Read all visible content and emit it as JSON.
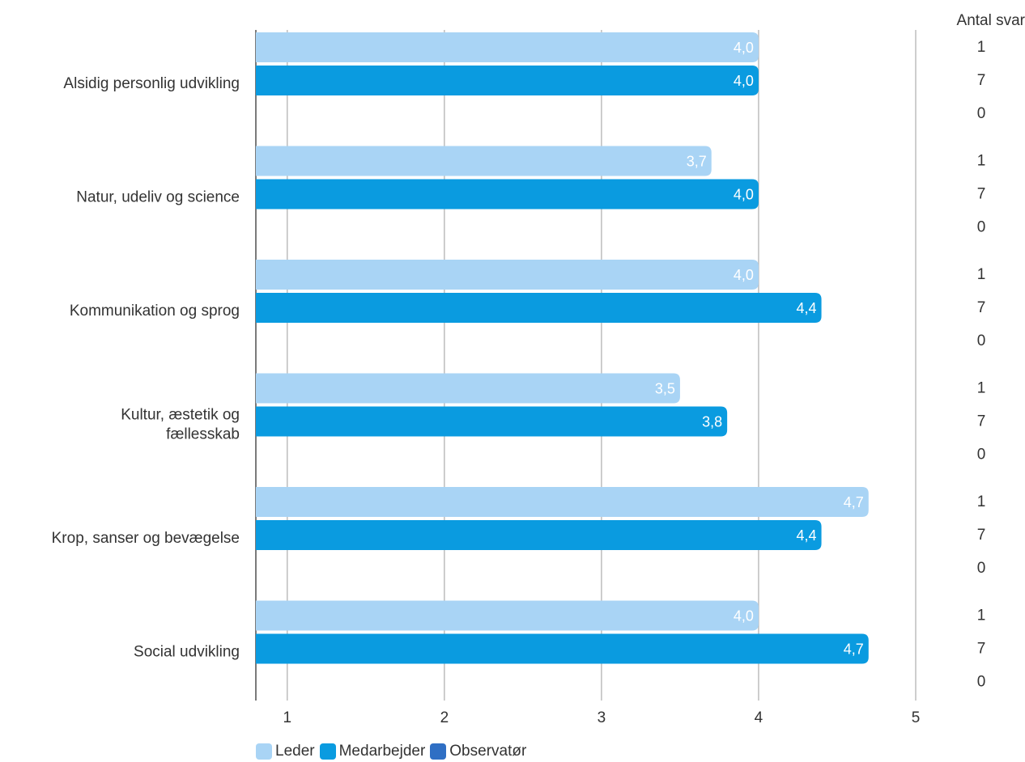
{
  "chart_data": {
    "type": "bar",
    "orientation": "horizontal",
    "categories": [
      "Alsidig personlig udvikling",
      "Natur, udeliv og science",
      "Kommunikation og sprog",
      "Kultur, æstetik og fællesskab",
      "Krop, sanser og bevægelse",
      "Social udvikling"
    ],
    "category_lines": [
      [
        "Alsidig personlig udvikling"
      ],
      [
        "Natur, udeliv og science"
      ],
      [
        "Kommunikation og sprog"
      ],
      [
        "Kultur, æstetik og",
        "fællesskab"
      ],
      [
        "Krop, sanser og bevægelse"
      ],
      [
        "Social udvikling"
      ]
    ],
    "series": [
      {
        "name": "Leder",
        "color": "#a9d4f5",
        "values": [
          4.0,
          3.7,
          4.0,
          3.5,
          4.7,
          4.0
        ],
        "labels": [
          "4,0",
          "3,7",
          "4,0",
          "3,5",
          "4,7",
          "4,0"
        ]
      },
      {
        "name": "Medarbejder",
        "color": "#0a9be0",
        "values": [
          4.0,
          4.0,
          4.4,
          3.8,
          4.4,
          4.7
        ],
        "labels": [
          "4,0",
          "4,0",
          "4,4",
          "3,8",
          "4,4",
          "4,7"
        ]
      },
      {
        "name": "Observatør",
        "color": "#2f6fc4",
        "values": [
          null,
          null,
          null,
          null,
          null,
          null
        ],
        "labels": []
      }
    ],
    "xlim": [
      0.8,
      5
    ],
    "xticks": [
      1,
      2,
      3,
      4,
      5
    ],
    "xtick_labels": [
      "1",
      "2",
      "3",
      "4",
      "5"
    ],
    "grid": true,
    "legend_position": "bottom-left",
    "count_header": "Antal svar",
    "counts": [
      [
        1,
        7,
        0
      ],
      [
        1,
        7,
        0
      ],
      [
        1,
        7,
        0
      ],
      [
        1,
        7,
        0
      ],
      [
        1,
        7,
        0
      ],
      [
        1,
        7,
        0
      ]
    ]
  }
}
